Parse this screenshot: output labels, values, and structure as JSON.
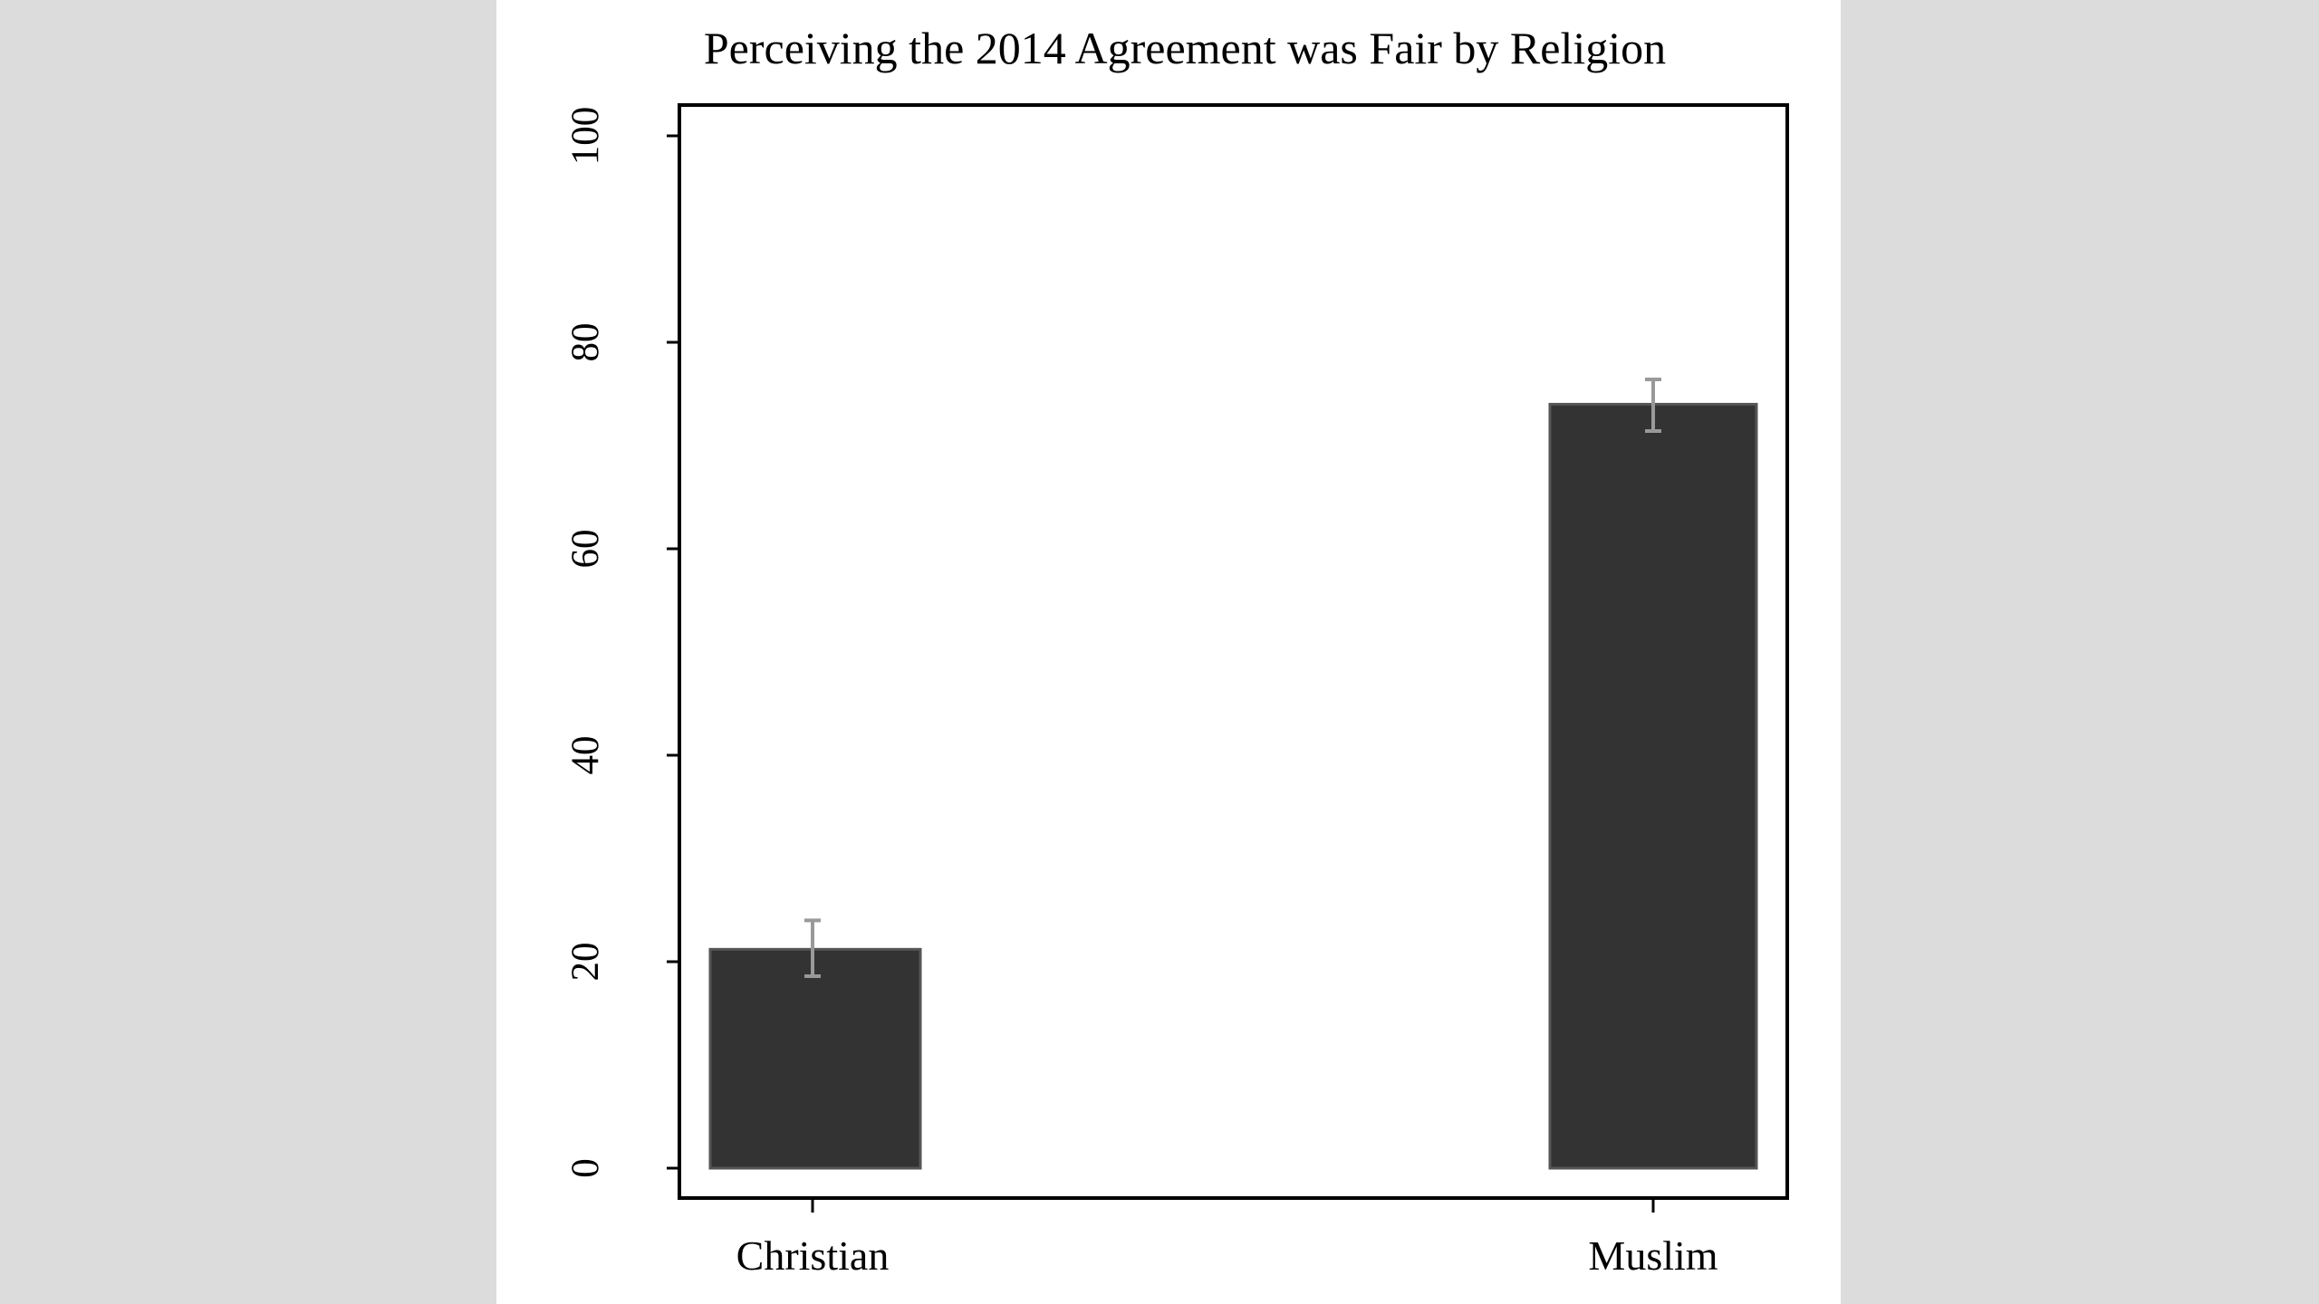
{
  "chart_data": {
    "type": "bar",
    "title": "Perceiving the 2014 Agreement was Fair by Religion",
    "xlabel": "",
    "ylabel": "",
    "categories": [
      "Christian",
      "Muslim"
    ],
    "values": [
      21.2,
      74.0
    ],
    "error_bars": [
      {
        "low": 18.6,
        "high": 24.0
      },
      {
        "low": 71.4,
        "high": 76.4
      }
    ],
    "ylim": [
      0,
      100
    ],
    "yticks": [
      0,
      20,
      40,
      60,
      80,
      100
    ],
    "grid": false,
    "legend": "none",
    "colors": {
      "bar": "#333333",
      "bar_edge": "#555555",
      "error_bar": "#999999",
      "axis": "#000000",
      "background": "#ffffff",
      "page": "#dcdcdc"
    }
  }
}
